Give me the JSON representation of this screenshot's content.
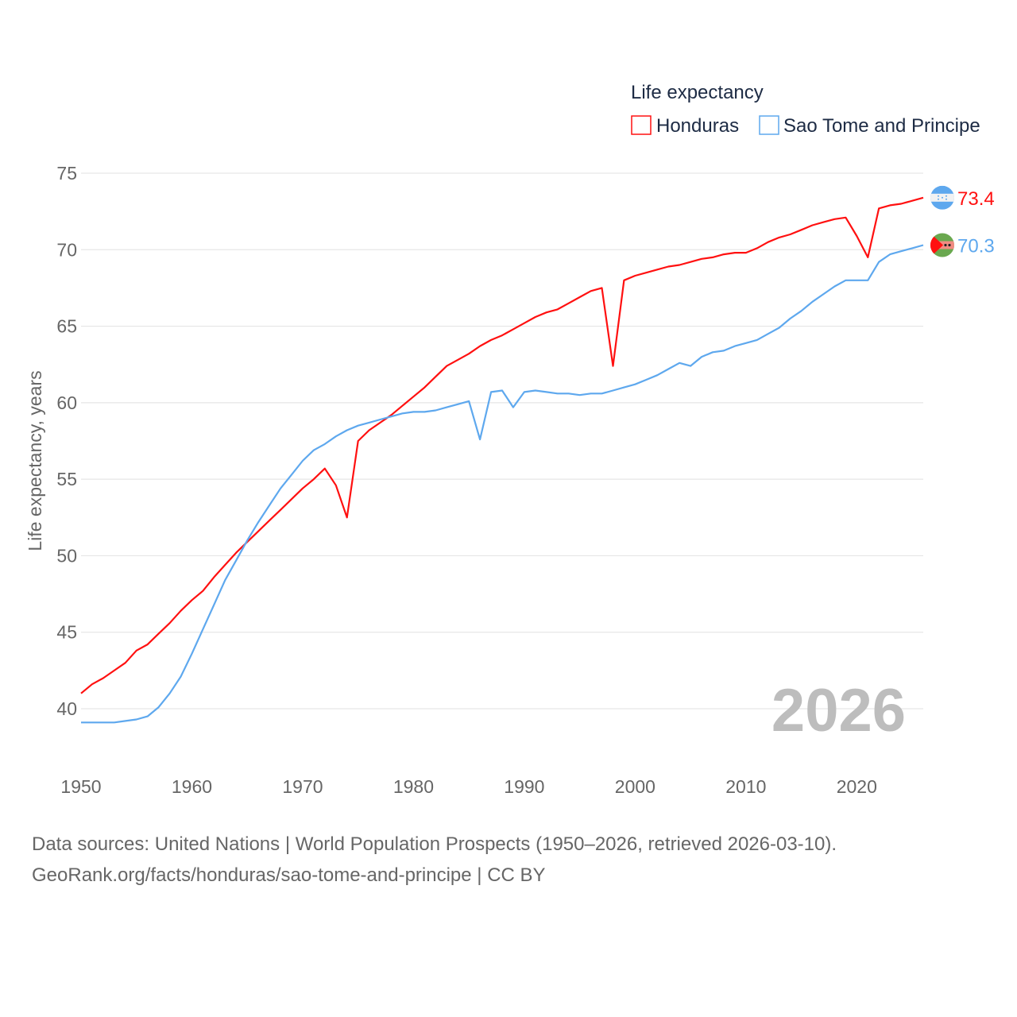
{
  "chart_data": {
    "type": "line",
    "legend_title": "Life expectancy",
    "legend_position": "top-right",
    "ylabel": "Life expectancy, years",
    "xlabel": "",
    "ylim": [
      40,
      75
    ],
    "xlim": [
      1950,
      2026
    ],
    "y_ticks": [
      "40",
      "45",
      "50",
      "55",
      "60",
      "65",
      "70",
      "75"
    ],
    "x_ticks": [
      "1950",
      "1960",
      "1970",
      "1980",
      "1990",
      "2000",
      "2010",
      "2020"
    ],
    "grid": true,
    "year_watermark": "2026",
    "x": [
      1950,
      1951,
      1952,
      1953,
      1954,
      1955,
      1956,
      1957,
      1958,
      1959,
      1960,
      1961,
      1962,
      1963,
      1964,
      1965,
      1966,
      1967,
      1968,
      1969,
      1970,
      1971,
      1972,
      1973,
      1974,
      1975,
      1976,
      1977,
      1978,
      1979,
      1980,
      1981,
      1982,
      1983,
      1984,
      1985,
      1986,
      1987,
      1988,
      1989,
      1990,
      1991,
      1992,
      1993,
      1994,
      1995,
      1996,
      1997,
      1998,
      1999,
      2000,
      2001,
      2002,
      2003,
      2004,
      2005,
      2006,
      2007,
      2008,
      2009,
      2010,
      2011,
      2012,
      2013,
      2014,
      2015,
      2016,
      2017,
      2018,
      2019,
      2020,
      2021,
      2022,
      2023,
      2024,
      2025,
      2026
    ],
    "series": [
      {
        "name": "Honduras",
        "color": "#ff1010",
        "end_label": "73.4",
        "flag": "honduras-flag",
        "values": [
          41.0,
          41.6,
          42.0,
          42.5,
          43.0,
          43.8,
          44.2,
          44.9,
          45.6,
          46.4,
          47.1,
          47.7,
          48.6,
          49.4,
          50.2,
          50.9,
          51.6,
          52.3,
          53.0,
          53.7,
          54.4,
          55.0,
          55.7,
          54.6,
          52.5,
          57.5,
          58.2,
          58.7,
          59.2,
          59.8,
          60.4,
          61.0,
          61.7,
          62.4,
          62.8,
          63.2,
          63.7,
          64.1,
          64.4,
          64.8,
          65.2,
          65.6,
          65.9,
          66.1,
          66.5,
          66.9,
          67.3,
          67.5,
          62.4,
          68.0,
          68.3,
          68.5,
          68.7,
          68.9,
          69.0,
          69.2,
          69.4,
          69.5,
          69.7,
          69.8,
          69.8,
          70.1,
          70.5,
          70.8,
          71.0,
          71.3,
          71.6,
          71.8,
          72.0,
          72.1,
          70.9,
          69.5,
          72.7,
          72.9,
          73.0,
          73.2,
          73.4
        ]
      },
      {
        "name": "Sao Tome and Principe",
        "color": "#5ea8ee",
        "end_label": "70.3",
        "flag": "sao-tome-flag",
        "values": [
          39.1,
          39.1,
          39.1,
          39.1,
          39.2,
          39.3,
          39.5,
          40.1,
          41.0,
          42.1,
          43.6,
          45.2,
          46.8,
          48.4,
          49.7,
          51.0,
          52.2,
          53.3,
          54.4,
          55.3,
          56.2,
          56.9,
          57.3,
          57.8,
          58.2,
          58.5,
          58.7,
          58.9,
          59.1,
          59.3,
          59.4,
          59.4,
          59.5,
          59.7,
          59.9,
          60.1,
          57.6,
          60.7,
          60.8,
          59.7,
          60.7,
          60.8,
          60.7,
          60.6,
          60.6,
          60.5,
          60.6,
          60.6,
          60.8,
          61.0,
          61.2,
          61.5,
          61.8,
          62.2,
          62.6,
          62.4,
          63.0,
          63.3,
          63.4,
          63.7,
          63.9,
          64.1,
          64.5,
          64.9,
          65.5,
          66.0,
          66.6,
          67.1,
          67.6,
          68.0,
          68.0,
          68.0,
          69.2,
          69.7,
          69.9,
          70.1,
          70.3
        ]
      }
    ]
  },
  "footer": {
    "line1": "Data sources: United Nations | World Population Prospects (1950–2026, retrieved 2026-03-10).",
    "line2": "GeoRank.org/facts/honduras/sao-tome-and-principe | CC BY"
  }
}
